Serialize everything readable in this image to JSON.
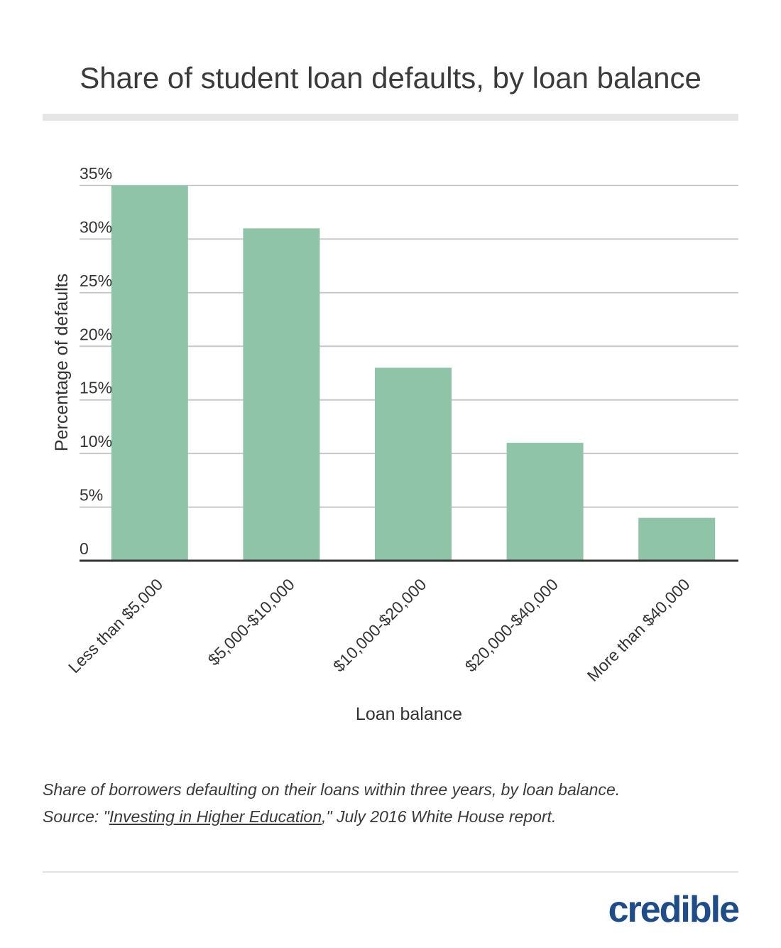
{
  "chart_data": {
    "type": "bar",
    "title": "Share of student loan defaults, by loan balance",
    "xlabel": "Loan balance",
    "ylabel": "Percentage of defaults",
    "categories": [
      "Less than $5,000",
      "$5,000-$10,000",
      "$10,000-$20,000",
      "$20,000-$40,000",
      "More than $40,000"
    ],
    "values": [
      35,
      31,
      18,
      11,
      4
    ],
    "ylim": [
      0,
      35
    ],
    "yticks": [
      {
        "value": 0,
        "label": "0"
      },
      {
        "value": 5,
        "label": "5%"
      },
      {
        "value": 10,
        "label": "10%"
      },
      {
        "value": 15,
        "label": "15%"
      },
      {
        "value": 20,
        "label": "20%"
      },
      {
        "value": 25,
        "label": "25%"
      },
      {
        "value": 30,
        "label": "30%"
      },
      {
        "value": 35,
        "label": "35%"
      }
    ],
    "grid": true,
    "legend": "none",
    "bar_color": "#8fc4a8",
    "grid_color": "#c8c8c8",
    "axis_color": "#333333"
  },
  "caption": {
    "line1": "Share of borrowers defaulting on their loans within three years, by loan balance.",
    "source_prefix": "Source: \"",
    "source_link": "Investing in Higher Education",
    "source_suffix": ",\" July 2016 White House report."
  },
  "logo": {
    "text": "credible",
    "color": "#1f4d8a"
  }
}
